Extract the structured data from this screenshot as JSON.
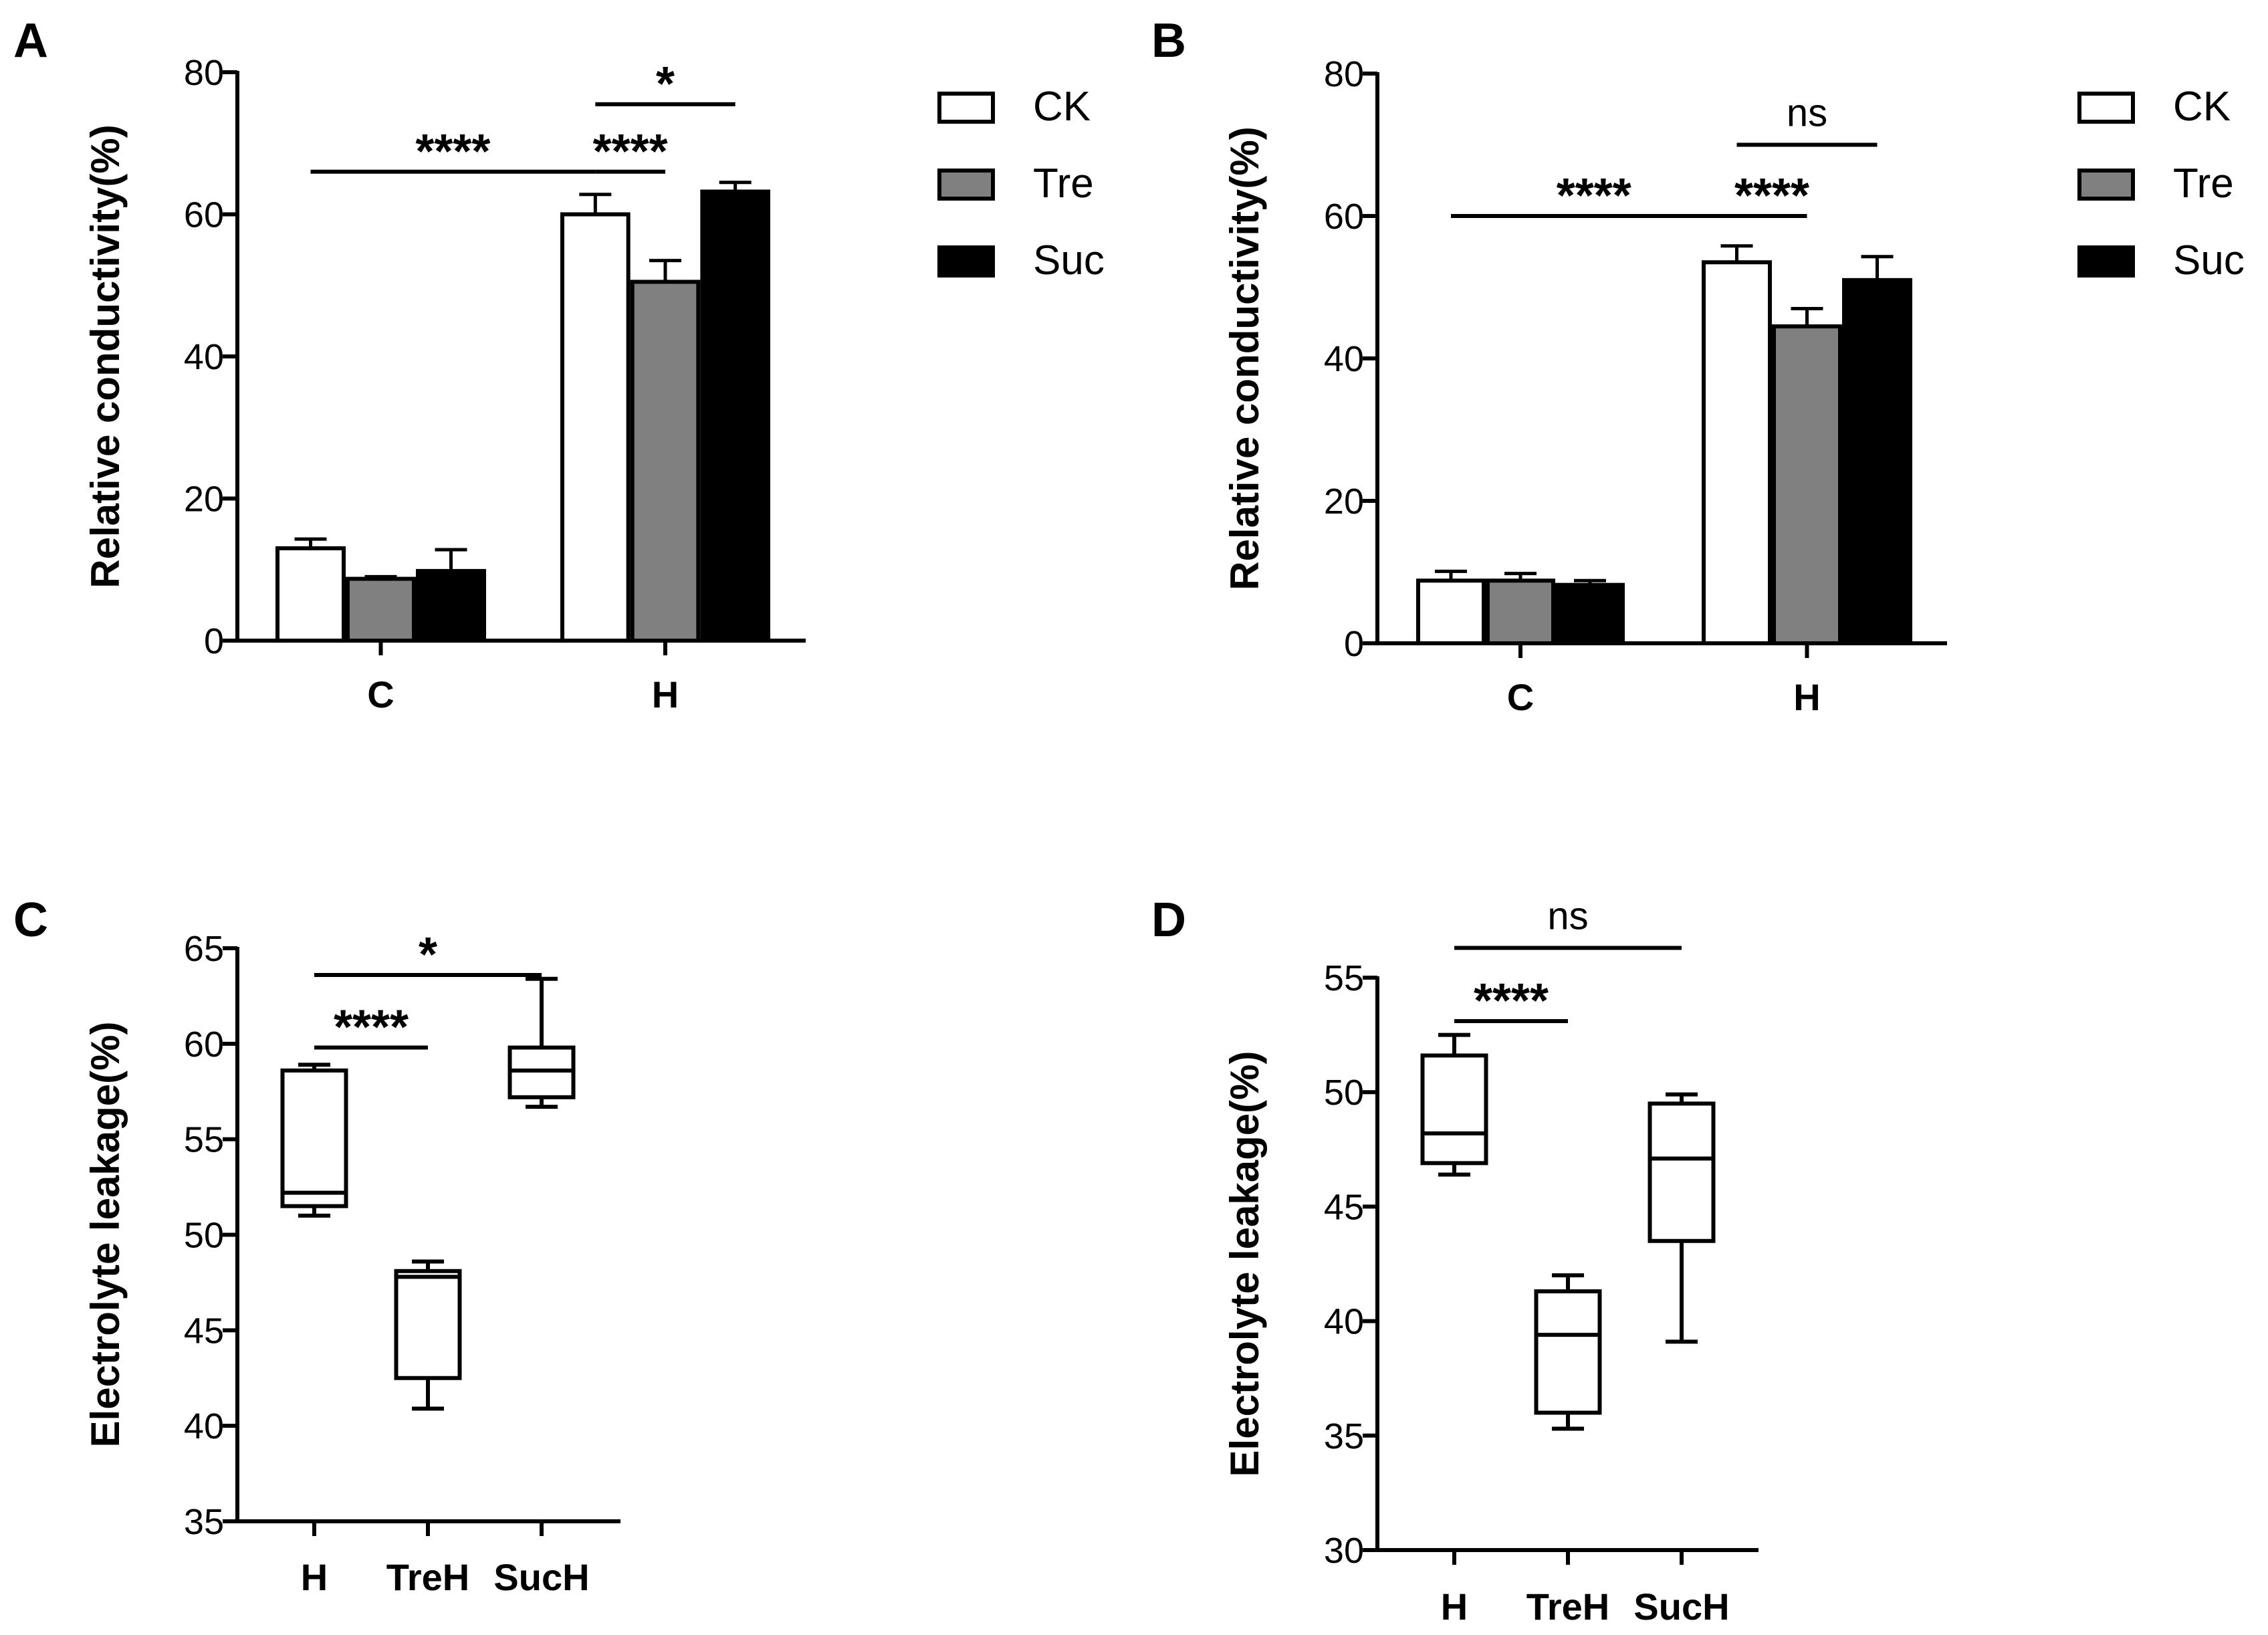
{
  "colors": {
    "CK": "#ffffff",
    "Tre": "#808080",
    "Suc": "#000000",
    "stroke": "#000000"
  },
  "chart_data": [
    {
      "panel": "A",
      "type": "bar",
      "ylabel": "Relative conductivity(%)",
      "ylim": [
        0,
        80
      ],
      "yticks": [
        "0",
        "20",
        "40",
        "60",
        "80"
      ],
      "categories": [
        "C",
        "H"
      ],
      "series": [
        {
          "name": "CK",
          "values": [
            13.0,
            60.0
          ],
          "errors": [
            1.3,
            2.8
          ]
        },
        {
          "name": "Tre",
          "values": [
            8.7,
            50.5
          ],
          "errors": [
            0.3,
            3.0
          ]
        },
        {
          "name": "Suc",
          "values": [
            9.8,
            63.2
          ],
          "errors": [
            3.0,
            1.3
          ]
        }
      ],
      "legend": [
        "CK",
        "Tre",
        "Suc"
      ],
      "annotations": [
        {
          "label": "****",
          "from": "C:CK",
          "to": "H:CK",
          "level": 66
        },
        {
          "label": "****",
          "from": "H:CK",
          "to": "H:Tre",
          "level": 66
        },
        {
          "label": "*",
          "from": "H:CK",
          "to": "H:Suc",
          "level": 75.5
        }
      ]
    },
    {
      "panel": "B",
      "type": "bar",
      "ylabel": "Relative conductivity(%)",
      "ylim": [
        0,
        80
      ],
      "yticks": [
        "0",
        "20",
        "40",
        "60",
        "80"
      ],
      "categories": [
        "C",
        "H"
      ],
      "series": [
        {
          "name": "CK",
          "values": [
            8.8,
            53.5
          ],
          "errors": [
            1.3,
            2.3
          ]
        },
        {
          "name": "Tre",
          "values": [
            8.8,
            44.5
          ],
          "errors": [
            1.0,
            2.5
          ]
        },
        {
          "name": "Suc",
          "values": [
            8.2,
            51.0
          ],
          "errors": [
            0.6,
            3.3
          ]
        }
      ],
      "legend": [
        "CK",
        "Tre",
        "Suc"
      ],
      "annotations": [
        {
          "label": "****",
          "from": "C:CK",
          "to": "H:CK",
          "level": 60
        },
        {
          "label": "****",
          "from": "H:CK",
          "to": "H:Tre",
          "level": 60
        },
        {
          "label": "ns",
          "from": "H:CK",
          "to": "H:Suc",
          "level": 70
        }
      ]
    },
    {
      "panel": "C",
      "type": "box",
      "ylabel": "Electrolyte leakage(%)",
      "ylim": [
        35,
        65
      ],
      "yticks": [
        "35",
        "40",
        "45",
        "50",
        "55",
        "60",
        "65"
      ],
      "categories": [
        "H",
        "TreH",
        "SucH"
      ],
      "boxes": [
        {
          "min": 51.0,
          "q1": 51.5,
          "median": 52.2,
          "q3": 58.6,
          "max": 58.9
        },
        {
          "min": 40.9,
          "q1": 42.5,
          "median": 47.8,
          "q3": 48.1,
          "max": 48.6
        },
        {
          "min": 56.7,
          "q1": 57.2,
          "median": 58.6,
          "q3": 59.8,
          "max": 63.4
        }
      ],
      "annotations": [
        {
          "label": "****",
          "from": "H",
          "to": "TreH",
          "level": 59.8
        },
        {
          "label": "*",
          "from": "H",
          "to": "SucH",
          "level": 63.6
        }
      ]
    },
    {
      "panel": "D",
      "type": "box",
      "ylabel": "Electrolyte leakage(%)",
      "ylim": [
        30,
        55
      ],
      "yticks": [
        "30",
        "35",
        "40",
        "45",
        "50",
        "55"
      ],
      "categories": [
        "H",
        "TreH",
        "SucH"
      ],
      "boxes": [
        {
          "min": 46.4,
          "q1": 46.9,
          "median": 48.2,
          "q3": 51.6,
          "max": 52.5
        },
        {
          "min": 35.3,
          "q1": 36.0,
          "median": 39.4,
          "q3": 41.3,
          "max": 42.0
        },
        {
          "min": 39.1,
          "q1": 43.5,
          "median": 47.1,
          "q3": 49.5,
          "max": 49.9
        }
      ],
      "annotations": [
        {
          "label": "****",
          "from": "H",
          "to": "TreH",
          "level": 53.1
        },
        {
          "label": "ns",
          "from": "H",
          "to": "SucH",
          "level": 56.3
        }
      ]
    }
  ]
}
